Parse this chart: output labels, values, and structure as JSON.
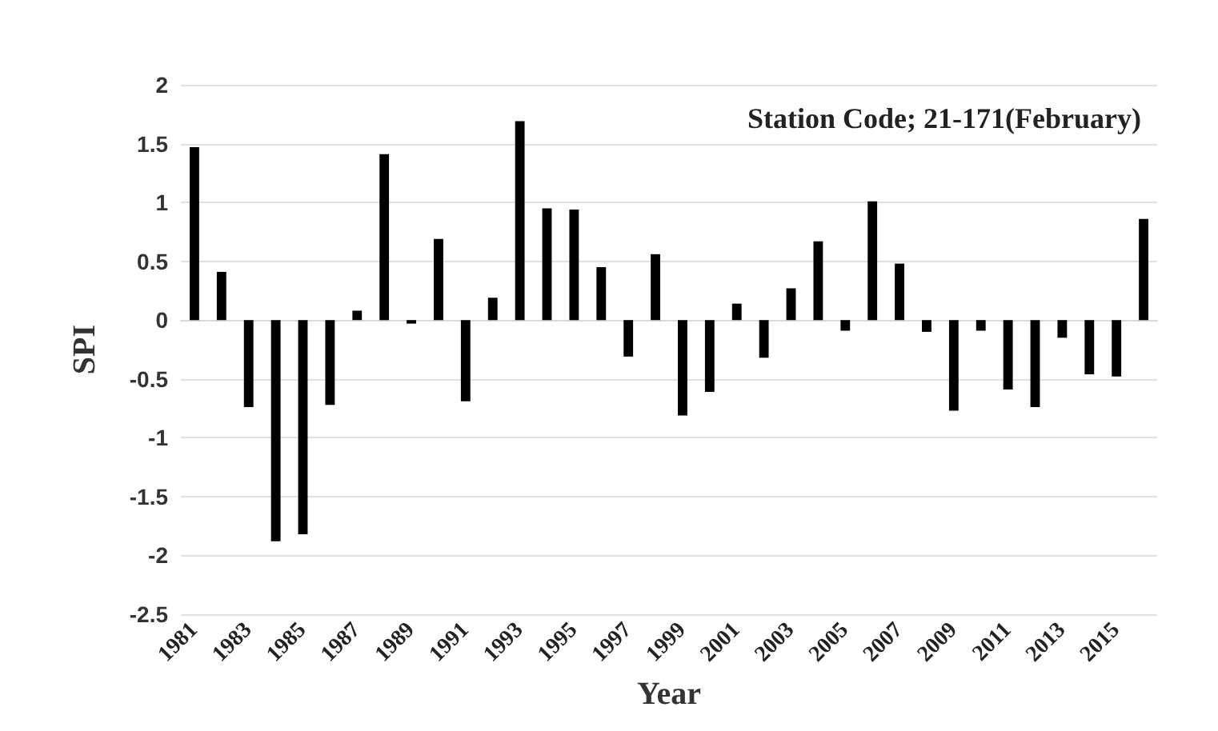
{
  "chart_data": {
    "type": "bar",
    "title": "Station Code; 21-171(February)",
    "xlabel": "Year",
    "ylabel": "SPI",
    "categories": [
      "1981",
      null,
      "1983",
      null,
      "1985",
      null,
      "1987",
      null,
      "1989",
      null,
      "1991",
      null,
      "1993",
      null,
      "1995",
      null,
      "1997",
      null,
      "1999",
      null,
      "2001",
      null,
      "2003",
      null,
      "2005",
      null,
      "2007",
      null,
      "2009",
      null,
      "2011",
      null,
      "2013",
      null,
      "2015",
      null
    ],
    "values": [
      1.47,
      0.41,
      -0.74,
      -1.88,
      -1.82,
      -0.72,
      0.08,
      1.41,
      -0.03,
      0.69,
      -0.69,
      0.19,
      1.69,
      0.95,
      0.94,
      0.45,
      -0.31,
      0.56,
      -0.81,
      -0.61,
      0.14,
      -0.32,
      0.27,
      0.67,
      -0.09,
      1.01,
      0.48,
      -0.1,
      -0.77,
      -0.09,
      -0.59,
      -0.74,
      -0.15,
      -0.46,
      -0.48,
      0.86
    ],
    "color": "#000000",
    "ylim": [
      -2.5,
      2
    ],
    "yticks": [
      -2.5,
      -2,
      -1.5,
      -1,
      -0.5,
      0,
      0.5,
      1,
      1.5,
      2
    ],
    "grid": "y"
  }
}
